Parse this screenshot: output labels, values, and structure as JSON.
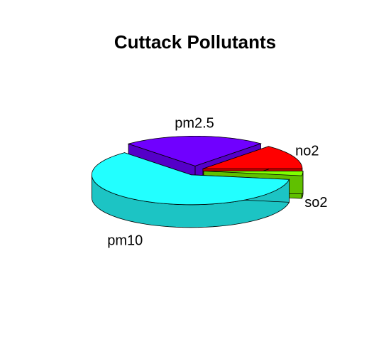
{
  "chart_data": {
    "type": "pie",
    "title": "Cuttack  Pollutants",
    "three_d": true,
    "exploded": true,
    "slices": [
      {
        "label": "no2",
        "value": 0.135,
        "color": "#FF0000",
        "side_color": "#C40000"
      },
      {
        "label": "pm2.5",
        "value": 0.232,
        "color": "#7000FF",
        "side_color": "#5500C8"
      },
      {
        "label": "pm10",
        "value": 0.608,
        "color": "#22FFFF",
        "side_color": "#1CC4C4"
      },
      {
        "label": "so2",
        "value": 0.025,
        "color": "#80FF00",
        "side_color": "#60C000"
      }
    ]
  }
}
